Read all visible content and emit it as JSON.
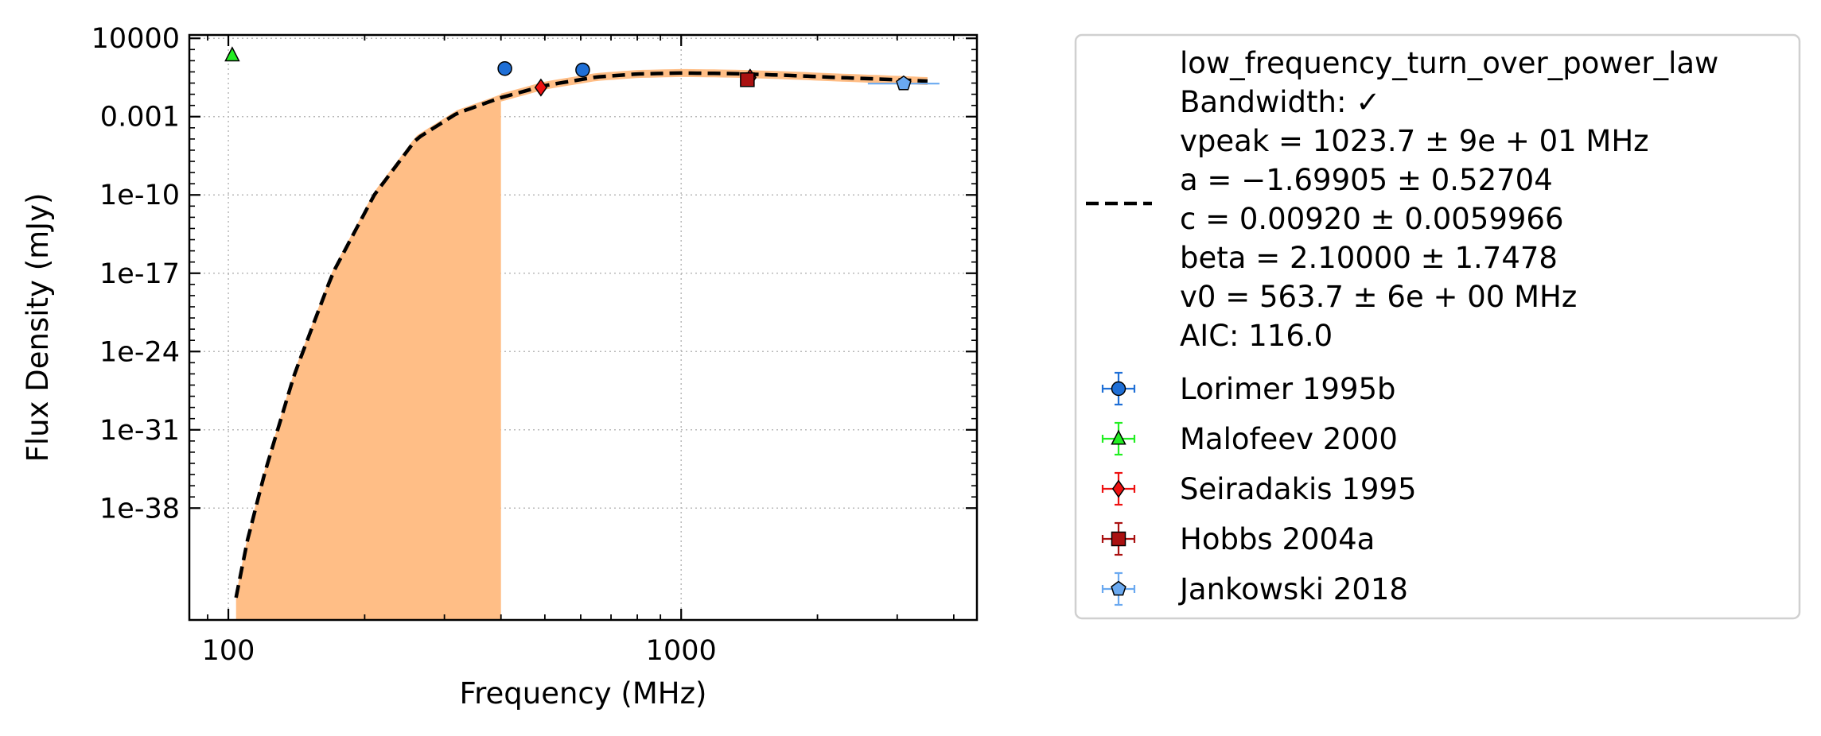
{
  "chart_data": {
    "type": "scatter",
    "xlabel": "Frequency (MHz)",
    "ylabel": "Flux Density (mJy)",
    "x_scale": "log",
    "y_scale": "log",
    "xlim": [
      82,
      4500
    ],
    "ylim": [
      1e-48,
      20000
    ],
    "x_ticks": [
      {
        "value": 100,
        "label": "100"
      },
      {
        "value": 1000,
        "label": "1000"
      }
    ],
    "y_ticks": [
      {
        "value": 10000,
        "label": "10000"
      },
      {
        "value": 0.001,
        "label": "0.001"
      },
      {
        "value": 1e-10,
        "label": "1e-10"
      },
      {
        "value": 1e-17,
        "label": "1e-17"
      },
      {
        "value": 1e-24,
        "label": "1e-24"
      },
      {
        "value": 1e-31,
        "label": "1e-31"
      },
      {
        "value": 1e-38,
        "label": "1e-38"
      }
    ],
    "grid": true,
    "legend_position": "outside-right",
    "model": {
      "name": "low_frequency_turn_over_power_law",
      "legend_lines": [
        "low_frequency_turn_over_power_law",
        "Bandwidth: ✓",
        "vpeak = 1023.7 ± 9e + 01 MHz",
        "a = −1.69905 ± 0.52704",
        "c = 0.00920 ± 0.0059966",
        "beta = 2.10000 ± 1.7478",
        "v0 = 563.7 ± 6e + 00 MHz",
        "AIC: 116.0"
      ],
      "line_color": "#000000",
      "band_color": "#ffbe86",
      "band_cutoff_x": 400,
      "curve": {
        "x": [
          104,
          110,
          120,
          140,
          170,
          210,
          260,
          320,
          400,
          500,
          650,
          800,
          1000,
          1300,
          1700,
          2200,
          2800,
          3500
        ],
        "y": [
          1e-46,
          1e-41,
          1e-35,
          1e-26,
          1e-17,
          1e-10,
          1e-05,
          0.002,
          0.05,
          0.6,
          3.5,
          6.5,
          8,
          7,
          5,
          3.2,
          2.2,
          1.5
        ]
      }
    },
    "series": [
      {
        "name": "Lorimer 1995b",
        "marker": "circle",
        "color": "#1f6fd6",
        "x": [
          408,
          606
        ],
        "y": [
          20,
          15
        ]
      },
      {
        "name": "Malofeev 2000",
        "marker": "triangle",
        "color": "#22ee22",
        "x": [
          102
        ],
        "y": [
          300
        ]
      },
      {
        "name": "Seiradakis 1995",
        "marker": "diamond",
        "color": "#ee1111",
        "x": [
          490,
          1420
        ],
        "y": [
          0.4,
          3
        ]
      },
      {
        "name": "Hobbs 2004a",
        "marker": "square",
        "color": "#aa1111",
        "x": [
          1400
        ],
        "y": [
          2
        ]
      },
      {
        "name": "Jankowski 2018",
        "marker": "pentagon",
        "color": "#6aa9f0",
        "x": [
          3100
        ],
        "y": [
          0.9
        ]
      }
    ]
  }
}
